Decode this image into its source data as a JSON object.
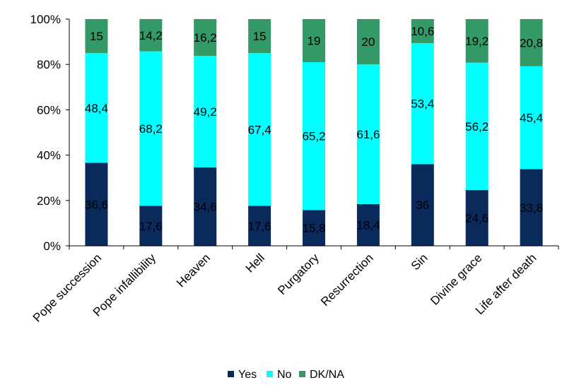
{
  "chart_data": {
    "type": "bar",
    "stacked": true,
    "percent": true,
    "categories": [
      "Pope succession",
      "Pope infallibility",
      "Heaven",
      "Hell",
      "Purgatory",
      "Resurrection",
      "Sin",
      "Divine grace",
      "Life after death"
    ],
    "series": [
      {
        "name": "Yes",
        "color": "#0a2a5c",
        "values": [
          36.6,
          17.6,
          34.6,
          17.6,
          15.8,
          18.4,
          36,
          24.6,
          33.8
        ],
        "labels": [
          "36,6",
          "17,6",
          "34,6",
          "17,6",
          "15,8",
          "18,4",
          "36",
          "24,6",
          "33,8"
        ]
      },
      {
        "name": "No",
        "color": "#00ffff",
        "values": [
          48.4,
          68.2,
          49.2,
          67.4,
          65.2,
          61.6,
          53.4,
          56.2,
          45.4
        ],
        "labels": [
          "48,4",
          "68,2",
          "49,2",
          "67,4",
          "65,2",
          "61,6",
          "53,4",
          "56,2",
          "45,4"
        ]
      },
      {
        "name": "DK/NA",
        "color": "#339966",
        "values": [
          15,
          14.2,
          16.2,
          15,
          19,
          20,
          10.6,
          19.2,
          20.8
        ],
        "labels": [
          "15",
          "14,2",
          "16,2",
          "15",
          "19",
          "20",
          "10,6",
          "19,2",
          "20,8"
        ]
      }
    ],
    "y_ticks": [
      "0%",
      "20%",
      "40%",
      "60%",
      "80%",
      "100%"
    ],
    "ylim": [
      0,
      100
    ],
    "grid": false,
    "legend_position": "bottom",
    "title": "",
    "xlabel": "",
    "ylabel": ""
  }
}
